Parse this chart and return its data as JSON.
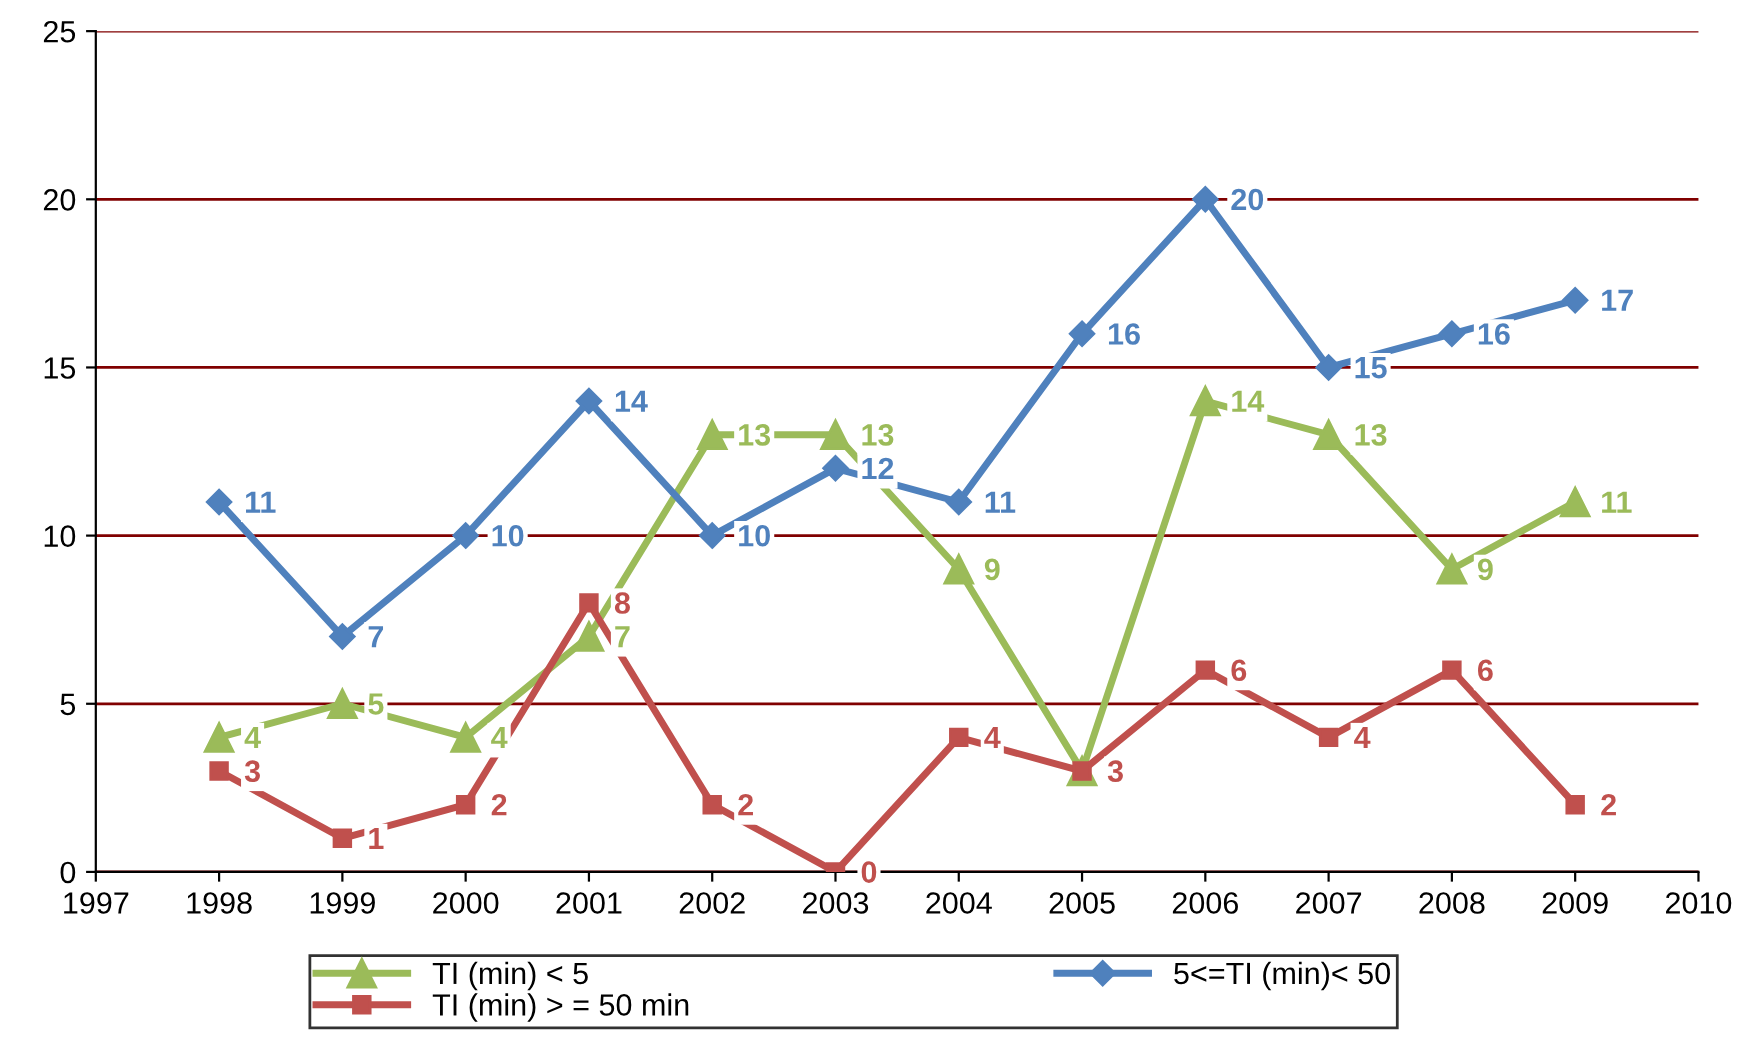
{
  "chart_data": {
    "type": "line",
    "x": [
      1998,
      1999,
      2000,
      2001,
      2002,
      2003,
      2004,
      2005,
      2006,
      2007,
      2008,
      2009
    ],
    "series": [
      {
        "name": "TI (min) < 5",
        "color": "#9bbb59",
        "marker": "triangle",
        "values": [
          4,
          5,
          4,
          7,
          13,
          13,
          9,
          3,
          14,
          13,
          9,
          11
        ],
        "value_labels": [
          "4",
          "5",
          "4",
          "7",
          "13",
          "13",
          "9",
          null,
          "14",
          "13",
          "9",
          "11"
        ]
      },
      {
        "name": "5<=TI (min)< 50",
        "color": "#4f81bd",
        "marker": "diamond",
        "values": [
          11,
          7,
          10,
          14,
          10,
          12,
          11,
          16,
          20,
          15,
          16,
          17
        ]
      },
      {
        "name": "TI (min) > = 50 min",
        "color": "#c0504d",
        "marker": "square",
        "values": [
          3,
          1,
          2,
          8,
          2,
          0,
          4,
          3,
          6,
          4,
          6,
          2
        ]
      }
    ],
    "xlim": [
      1997,
      2010
    ],
    "xticks": [
      1997,
      1998,
      1999,
      2000,
      2001,
      2002,
      2003,
      2004,
      2005,
      2006,
      2007,
      2008,
      2009,
      2010
    ],
    "ylim": [
      0,
      25
    ],
    "yticks": [
      0,
      5,
      10,
      15,
      20,
      25
    ],
    "grid": "y",
    "legend": "bottom",
    "data_labels": true,
    "line_style": "solid"
  }
}
